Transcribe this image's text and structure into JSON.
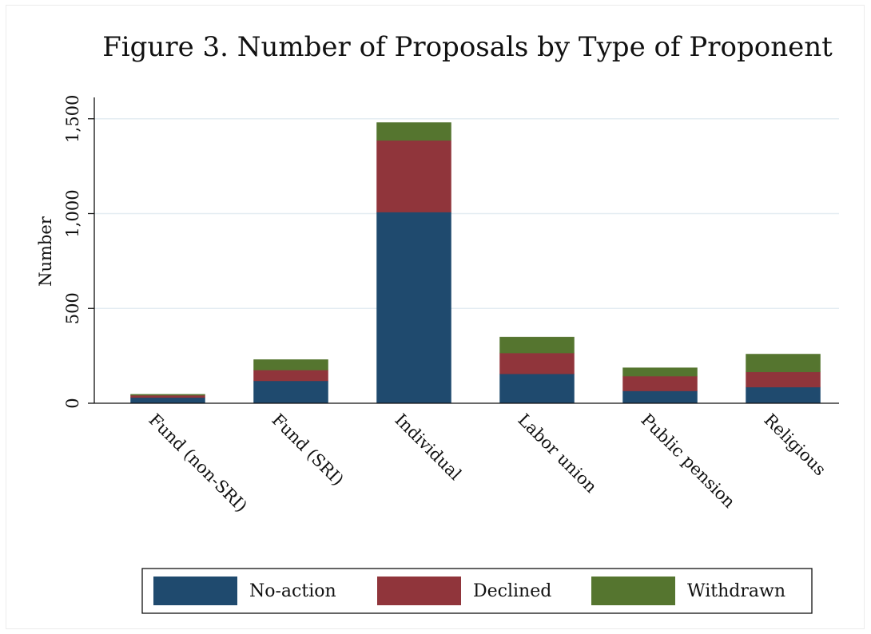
{
  "chart_data": {
    "type": "bar",
    "stacked": true,
    "title": "Figure 3. Number of Proposals by Type of Proponent",
    "xlabel": "",
    "ylabel": "Number",
    "categories": [
      "Fund (non-SRI)",
      "Fund (SRI)",
      "Individual",
      "Labor union",
      "Public pension",
      "Religious"
    ],
    "series": [
      {
        "name": "No-action",
        "color": "#1f4a6e",
        "values": [
          30,
          118,
          1008,
          155,
          65,
          85
        ]
      },
      {
        "name": "Declined",
        "color": "#90353b",
        "values": [
          12,
          57,
          378,
          110,
          78,
          80
        ]
      },
      {
        "name": "Withdrawn",
        "color": "#55752f",
        "values": [
          5,
          55,
          94,
          84,
          44,
          94
        ]
      }
    ],
    "ylim": [
      0,
      1500
    ],
    "yticks": [
      0,
      500,
      1000,
      1500
    ],
    "ytick_labels": [
      "0",
      "500",
      "1,000",
      "1,500"
    ],
    "grid": true,
    "legend_position": "bottom"
  }
}
